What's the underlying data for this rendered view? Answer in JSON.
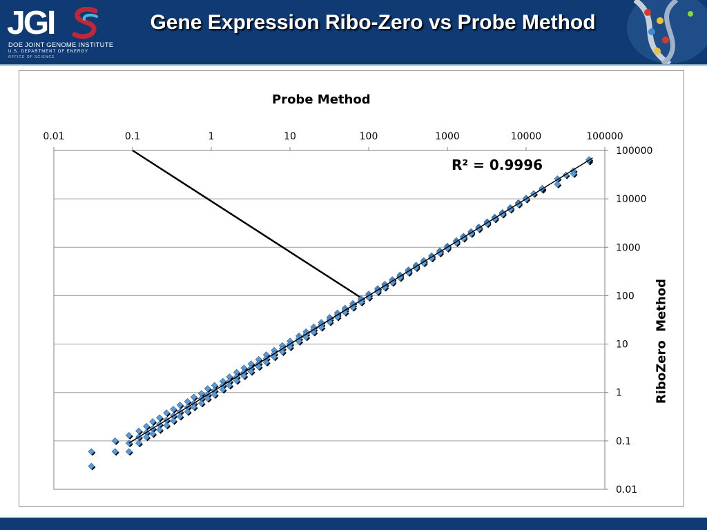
{
  "header": {
    "title": "Gene Expression Ribo-Zero vs Probe Method",
    "logo_text": "JGI",
    "logo_line1": "DOE JOINT GENOME INSTITUTE",
    "logo_line2": "U.S. DEPARTMENT OF ENERGY",
    "logo_line3": "OFFICE OF SCIENCE",
    "bg_color": "#0f3a73"
  },
  "chart_data": {
    "type": "scatter",
    "title": "",
    "xlabel": "Probe Method",
    "ylabel": "RiboZero  Method",
    "x_scale": "log",
    "y_scale": "log",
    "xlim": [
      0.01,
      100000
    ],
    "ylim": [
      0.01,
      100000
    ],
    "x_ticks": [
      "0.01",
      "0.1",
      "1",
      "10",
      "100",
      "1000",
      "10000",
      "100000"
    ],
    "y_ticks": [
      "0.01",
      "0.1",
      "1",
      "10",
      "100",
      "1000",
      "10000",
      "100000"
    ],
    "x_axis_position": "top",
    "y_axis_position": "right",
    "grid": "horizontal",
    "annotation": "R² = 0.9996",
    "trendline": {
      "type": "linear",
      "r_squared": 0.9996
    },
    "callout_line": {
      "from": [
        0.1,
        100000
      ],
      "to": [
        85,
        85
      ]
    },
    "series": [
      {
        "marker": "diamond",
        "color": "#5b9bd5",
        "outline": "#000000",
        "points": [
          [
            0.03,
            0.06
          ],
          [
            0.03,
            0.03
          ],
          [
            0.06,
            0.1
          ],
          [
            0.06,
            0.06
          ],
          [
            0.09,
            0.13
          ],
          [
            0.09,
            0.09
          ],
          [
            0.09,
            0.06
          ],
          [
            0.12,
            0.16
          ],
          [
            0.12,
            0.12
          ],
          [
            0.12,
            0.09
          ],
          [
            0.15,
            0.2
          ],
          [
            0.15,
            0.15
          ],
          [
            0.15,
            0.12
          ],
          [
            0.18,
            0.25
          ],
          [
            0.18,
            0.18
          ],
          [
            0.18,
            0.14
          ],
          [
            0.22,
            0.3
          ],
          [
            0.22,
            0.22
          ],
          [
            0.22,
            0.17
          ],
          [
            0.27,
            0.38
          ],
          [
            0.27,
            0.27
          ],
          [
            0.27,
            0.21
          ],
          [
            0.33,
            0.45
          ],
          [
            0.33,
            0.33
          ],
          [
            0.33,
            0.26
          ],
          [
            0.4,
            0.55
          ],
          [
            0.4,
            0.4
          ],
          [
            0.4,
            0.32
          ],
          [
            0.5,
            0.65
          ],
          [
            0.5,
            0.5
          ],
          [
            0.5,
            0.4
          ],
          [
            0.6,
            0.8
          ],
          [
            0.6,
            0.6
          ],
          [
            0.6,
            0.5
          ],
          [
            0.75,
            0.95
          ],
          [
            0.75,
            0.75
          ],
          [
            0.75,
            0.6
          ],
          [
            0.9,
            1.2
          ],
          [
            0.9,
            0.9
          ],
          [
            0.9,
            0.75
          ],
          [
            1.1,
            1.4
          ],
          [
            1.1,
            1.1
          ],
          [
            1.1,
            0.9
          ],
          [
            1.4,
            1.7
          ],
          [
            1.4,
            1.4
          ],
          [
            1.4,
            1.15
          ],
          [
            1.7,
            2.1
          ],
          [
            1.7,
            1.7
          ],
          [
            1.7,
            1.4
          ],
          [
            2.1,
            2.6
          ],
          [
            2.1,
            2.1
          ],
          [
            2.1,
            1.75
          ],
          [
            2.6,
            3.2
          ],
          [
            2.6,
            2.6
          ],
          [
            2.6,
            2.2
          ],
          [
            3.2,
            3.9
          ],
          [
            3.2,
            3.2
          ],
          [
            3.2,
            2.7
          ],
          [
            4,
            4.8
          ],
          [
            4,
            4
          ],
          [
            4,
            3.4
          ],
          [
            5,
            6
          ],
          [
            5,
            5
          ],
          [
            5,
            4.2
          ],
          [
            6.3,
            7.4
          ],
          [
            6.3,
            6.3
          ],
          [
            6.3,
            5.4
          ],
          [
            8,
            9.3
          ],
          [
            8,
            8
          ],
          [
            8,
            6.9
          ],
          [
            10,
            11.5
          ],
          [
            10,
            10
          ],
          [
            10,
            8.7
          ],
          [
            13,
            14.8
          ],
          [
            13,
            13
          ],
          [
            13,
            11.3
          ],
          [
            16,
            18
          ],
          [
            16,
            16
          ],
          [
            16,
            14
          ],
          [
            20,
            22.5
          ],
          [
            20,
            20
          ],
          [
            20,
            17.5
          ],
          [
            25,
            28
          ],
          [
            25,
            25
          ],
          [
            25,
            22
          ],
          [
            32,
            35.5
          ],
          [
            32,
            32
          ],
          [
            32,
            28.5
          ],
          [
            40,
            44
          ],
          [
            40,
            40
          ],
          [
            40,
            36
          ],
          [
            50,
            55
          ],
          [
            50,
            50
          ],
          [
            50,
            45
          ],
          [
            63,
            69
          ],
          [
            63,
            63
          ],
          [
            63,
            57
          ],
          [
            80,
            87
          ],
          [
            80,
            80
          ],
          [
            80,
            73
          ],
          [
            100,
            108
          ],
          [
            100,
            100
          ],
          [
            100,
            92
          ],
          [
            130,
            140
          ],
          [
            130,
            130
          ],
          [
            130,
            120
          ],
          [
            160,
            172
          ],
          [
            160,
            160
          ],
          [
            160,
            148
          ],
          [
            200,
            214
          ],
          [
            200,
            200
          ],
          [
            200,
            186
          ],
          [
            250,
            267
          ],
          [
            250,
            250
          ],
          [
            250,
            234
          ],
          [
            320,
            340
          ],
          [
            320,
            320
          ],
          [
            320,
            300
          ],
          [
            400,
            425
          ],
          [
            400,
            400
          ],
          [
            400,
            376
          ],
          [
            500,
            530
          ],
          [
            500,
            500
          ],
          [
            500,
            470
          ],
          [
            630,
            667
          ],
          [
            630,
            630
          ],
          [
            630,
            593
          ],
          [
            800,
            845
          ],
          [
            800,
            800
          ],
          [
            800,
            755
          ],
          [
            1000,
            1055
          ],
          [
            1000,
            1000
          ],
          [
            1000,
            945
          ],
          [
            1300,
            1370
          ],
          [
            1300,
            1300
          ],
          [
            1300,
            1230
          ],
          [
            1600,
            1685
          ],
          [
            1600,
            1600
          ],
          [
            1600,
            1515
          ],
          [
            2000,
            2100
          ],
          [
            2000,
            2000
          ],
          [
            2000,
            1900
          ],
          [
            2500,
            2620
          ],
          [
            2500,
            2500
          ],
          [
            2500,
            2380
          ],
          [
            3200,
            3350
          ],
          [
            3200,
            3200
          ],
          [
            3200,
            3050
          ],
          [
            4000,
            4180
          ],
          [
            4000,
            4000
          ],
          [
            4000,
            3820
          ],
          [
            5000,
            5220
          ],
          [
            5000,
            5000
          ],
          [
            5000,
            4780
          ],
          [
            6300,
            6570
          ],
          [
            6300,
            6300
          ],
          [
            6300,
            6030
          ],
          [
            8000,
            8320
          ],
          [
            8000,
            8000
          ],
          [
            8000,
            7680
          ],
          [
            10000,
            10350
          ],
          [
            10000,
            9800
          ],
          [
            12500,
            12800
          ],
          [
            16000,
            15500
          ],
          [
            16000,
            16500
          ],
          [
            25000,
            26000
          ],
          [
            25000,
            20000
          ],
          [
            32000,
            31000
          ],
          [
            40000,
            38000
          ],
          [
            40000,
            33000
          ],
          [
            63000,
            60000
          ],
          [
            63000,
            65000
          ]
        ]
      }
    ]
  }
}
